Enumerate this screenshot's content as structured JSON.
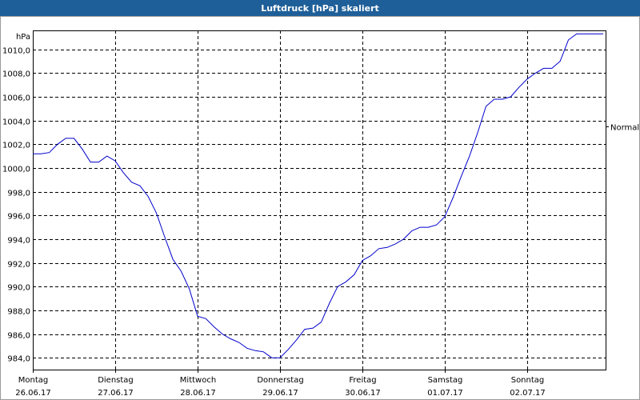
{
  "window": {
    "title": "Luftdruck [hPa] skaliert"
  },
  "chart_data": {
    "type": "line",
    "title": "Luftdruck [hPa] skaliert",
    "ylabel": "hPa",
    "ylim": [
      983.0,
      1011.6
    ],
    "yticks": [
      "984,0",
      "986,0",
      "988,0",
      "990,0",
      "992,0",
      "994,0",
      "996,0",
      "998,0",
      "1000,0",
      "1002,0",
      "1004,0",
      "1006,0",
      "1008,0",
      "1010,0"
    ],
    "ytick_values": [
      984,
      986,
      988,
      990,
      992,
      994,
      996,
      998,
      1000,
      1002,
      1004,
      1006,
      1008,
      1010
    ],
    "reference_line": {
      "label": "Normal",
      "value": 1003.5
    },
    "xlim": [
      0,
      7.13
    ],
    "xticks": [
      {
        "day": "Montag",
        "date": "26.06.17"
      },
      {
        "day": "Dienstag",
        "date": "27.06.17"
      },
      {
        "day": "Mittwoch",
        "date": "28.06.17"
      },
      {
        "day": "Donnerstag",
        "date": "29.06.17"
      },
      {
        "day": "Freitag",
        "date": "30.06.17"
      },
      {
        "day": "Samstag",
        "date": "01.07.17"
      },
      {
        "day": "Sonntag",
        "date": "02.07.17"
      }
    ],
    "grid": true,
    "color": "#0000cc",
    "series": [
      {
        "x": [
          0.0,
          0.1,
          0.2,
          0.3,
          0.4,
          0.5,
          0.6,
          0.7,
          0.8,
          0.9,
          1.0,
          1.1,
          1.2,
          1.3,
          1.4,
          1.5,
          1.6,
          1.7,
          1.8,
          1.9,
          2.0,
          2.1,
          2.2,
          2.3,
          2.4,
          2.5,
          2.6,
          2.7,
          2.8,
          2.9,
          3.0,
          3.1,
          3.2,
          3.3,
          3.4,
          3.5,
          3.6,
          3.7,
          3.8,
          3.9,
          4.0,
          4.1,
          4.2,
          4.3,
          4.4,
          4.5,
          4.6,
          4.7,
          4.8,
          4.9,
          5.0,
          5.1,
          5.2,
          5.3,
          5.4,
          5.5,
          5.6,
          5.7,
          5.8,
          5.9,
          6.0,
          6.1,
          6.2,
          6.3,
          6.4,
          6.5,
          6.6,
          6.7,
          6.8,
          6.9,
          7.0,
          7.13
        ],
        "values": [
          1001.2,
          1001.2,
          1001.3,
          1002.0,
          1002.5,
          1002.5,
          1001.6,
          1000.5,
          1000.5,
          1001.0,
          1000.6,
          999.6,
          998.8,
          998.5,
          997.6,
          996.2,
          994.2,
          992.3,
          991.3,
          989.8,
          987.5,
          987.3,
          986.6,
          986.0,
          985.6,
          985.3,
          984.8,
          984.6,
          984.5,
          984.0,
          984.0,
          984.7,
          985.5,
          986.4,
          986.5,
          987.0,
          988.6,
          990.0,
          990.4,
          991.0,
          992.2,
          992.6,
          993.2,
          993.3,
          993.6,
          994.0,
          994.7,
          995.0,
          995.0,
          995.2,
          995.9,
          997.5,
          999.3,
          1001.0,
          1003.0,
          1005.2,
          1005.8,
          1005.8,
          1006.0,
          1006.8,
          1007.5,
          1008.0,
          1008.4,
          1008.4,
          1009.0,
          1010.8,
          1011.3,
          1011.3,
          1011.3,
          1011.3,
          1011.3,
          1011.3
        ]
      }
    ]
  }
}
